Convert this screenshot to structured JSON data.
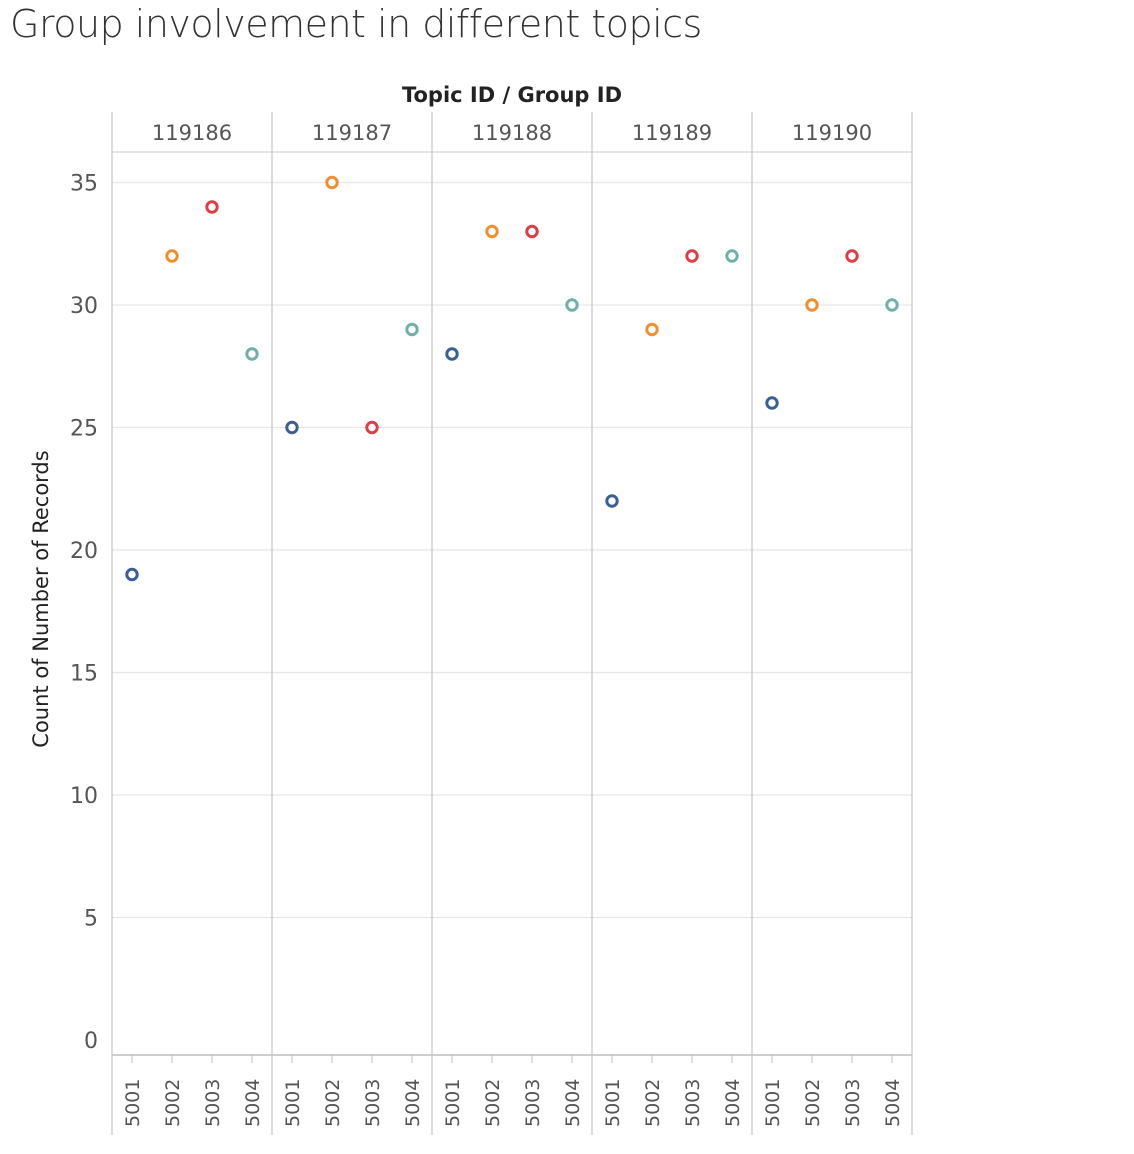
{
  "title": "Group involvement in different topics",
  "chart_data": {
    "type": "scatter",
    "title": "Group involvement in different topics",
    "column_header": "Topic ID  /  Group ID",
    "ylabel": "Count of Number of Records",
    "ylim": [
      0,
      37
    ],
    "yticks": [
      0,
      5,
      10,
      15,
      20,
      25,
      30,
      35
    ],
    "grid": true,
    "topics": [
      "119186",
      "119187",
      "119188",
      "119189",
      "119190"
    ],
    "groups": [
      "5001",
      "5002",
      "5003",
      "5004"
    ],
    "colors": {
      "5001": "#3a5f94",
      "5002": "#f28e2b",
      "5003": "#e03c44",
      "5004": "#6fb1aa"
    },
    "series": [
      {
        "topic": "119186",
        "values": [
          19,
          32,
          34,
          28
        ]
      },
      {
        "topic": "119187",
        "values": [
          25,
          35,
          25,
          29
        ]
      },
      {
        "topic": "119188",
        "values": [
          28,
          33,
          33,
          30
        ]
      },
      {
        "topic": "119189",
        "values": [
          22,
          29,
          32,
          32
        ]
      },
      {
        "topic": "119190",
        "values": [
          26,
          30,
          32,
          30
        ]
      }
    ]
  }
}
